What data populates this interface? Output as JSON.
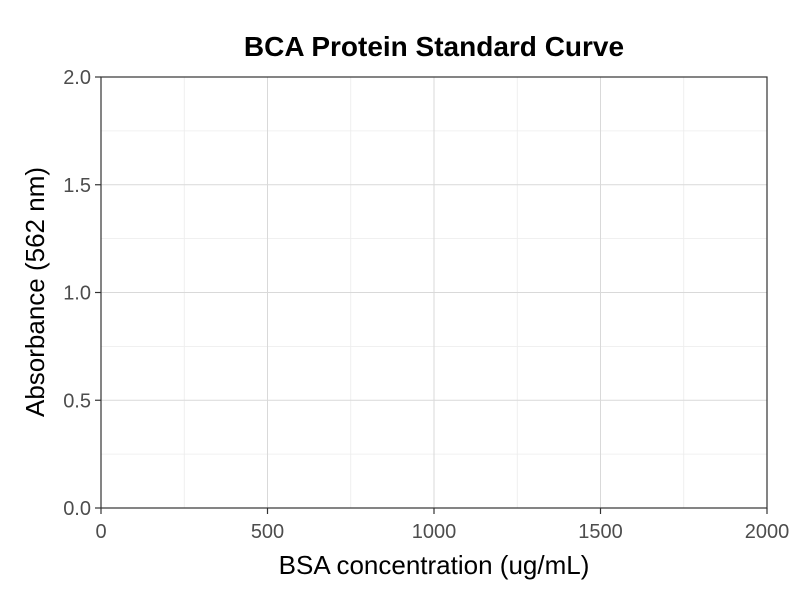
{
  "chart_data": {
    "type": "scatter",
    "title": "BCA Protein Standard Curve",
    "xlabel": "BSA concentration (ug/mL)",
    "ylabel": "Absorbance (562 nm)",
    "xlim": [
      0,
      2000
    ],
    "ylim": [
      0,
      2.0
    ],
    "x_ticks": [
      0,
      500,
      1000,
      1500,
      2000
    ],
    "x_tick_labels": [
      "0",
      "500",
      "1000",
      "1500",
      "2000"
    ],
    "y_ticks": [
      0,
      0.5,
      1.0,
      1.5,
      2.0
    ],
    "y_tick_labels": [
      "0.0",
      "0.5",
      "1.0",
      "1.5",
      "2.0"
    ],
    "x_minor_ticks": [
      250,
      750,
      1250,
      1750
    ],
    "y_minor_ticks": [
      0.25,
      0.75,
      1.25,
      1.75
    ],
    "grid": true,
    "series": [],
    "colors": {
      "grid_major": "#d9d9d9",
      "grid_minor": "#ececec",
      "axis": "#333333",
      "tick_text": "#4d4d4d"
    }
  }
}
